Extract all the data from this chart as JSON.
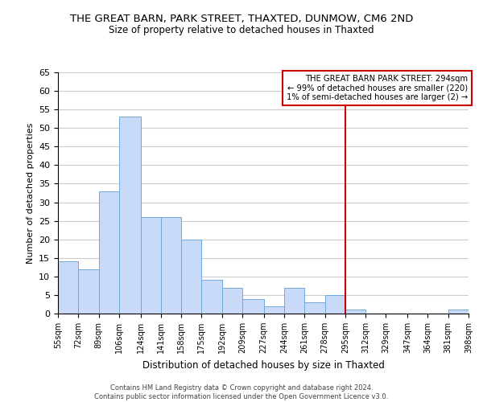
{
  "title": "THE GREAT BARN, PARK STREET, THAXTED, DUNMOW, CM6 2ND",
  "subtitle": "Size of property relative to detached houses in Thaxted",
  "xlabel": "Distribution of detached houses by size in Thaxted",
  "ylabel": "Number of detached properties",
  "bar_edges": [
    55,
    72,
    89,
    106,
    124,
    141,
    158,
    175,
    192,
    209,
    227,
    244,
    261,
    278,
    295,
    312,
    329,
    347,
    364,
    381,
    398
  ],
  "bar_heights": [
    14,
    12,
    33,
    53,
    26,
    26,
    20,
    9,
    7,
    4,
    2,
    7,
    3,
    5,
    1,
    0,
    0,
    0,
    0,
    1
  ],
  "bar_color": "#c9daf8",
  "bar_edge_color": "#6fa8dc",
  "grid_color": "#cccccc",
  "vline_x": 295,
  "vline_color": "#cc0000",
  "annotation_line1": "THE GREAT BARN PARK STREET: 294sqm",
  "annotation_line2": "← 99% of detached houses are smaller (220)",
  "annotation_line3": "1% of semi-detached houses are larger (2) →",
  "annotation_box_color": "#cc0000",
  "annotation_box_fill": "#ffffff",
  "ylim": [
    0,
    65
  ],
  "yticks": [
    0,
    5,
    10,
    15,
    20,
    25,
    30,
    35,
    40,
    45,
    50,
    55,
    60,
    65
  ],
  "footer_line1": "Contains HM Land Registry data © Crown copyright and database right 2024.",
  "footer_line2": "Contains public sector information licensed under the Open Government Licence v3.0.",
  "tick_labels": [
    "55sqm",
    "72sqm",
    "89sqm",
    "106sqm",
    "124sqm",
    "141sqm",
    "158sqm",
    "175sqm",
    "192sqm",
    "209sqm",
    "227sqm",
    "244sqm",
    "261sqm",
    "278sqm",
    "295sqm",
    "312sqm",
    "329sqm",
    "347sqm",
    "364sqm",
    "381sqm",
    "398sqm"
  ]
}
